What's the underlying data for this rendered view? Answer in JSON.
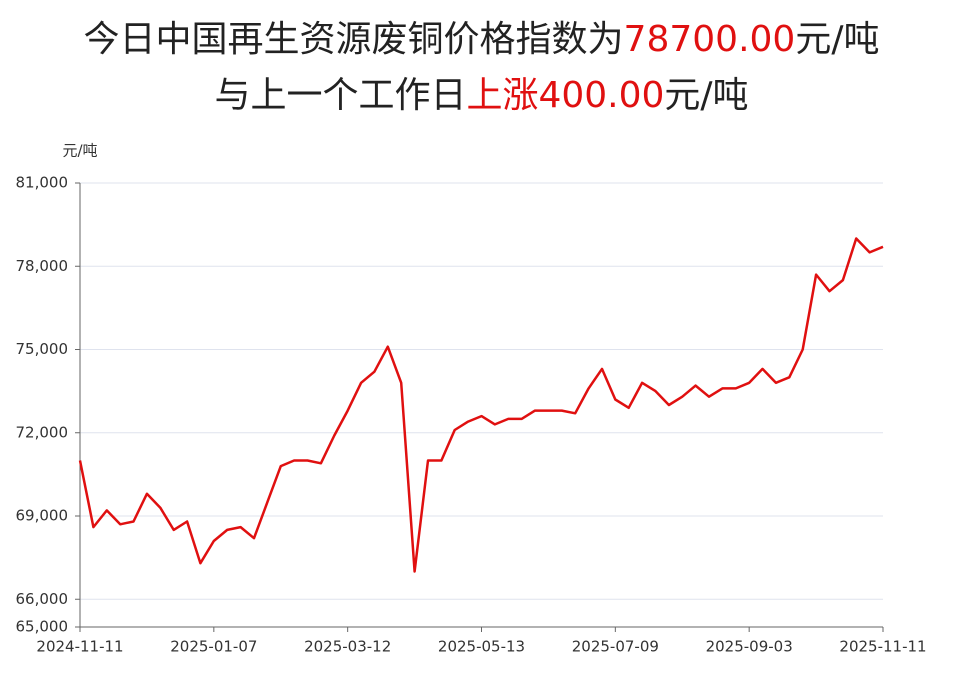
{
  "chart_data": {
    "type": "line",
    "title_line1": "今日中国再生资源废铜价格指数为",
    "title_price": "78700.00",
    "title_unit1": "元/吨",
    "title_line2": "与上一个工作日",
    "title_change": "上涨400.00",
    "title_unit2": "元/吨",
    "y_label": "元/吨",
    "categories": [
      "2024-11-11",
      null,
      null,
      null,
      null,
      null,
      null,
      null,
      null,
      null,
      "2025-01-07",
      null,
      null,
      null,
      null,
      null,
      null,
      null,
      null,
      null,
      "2025-03-12",
      null,
      null,
      null,
      null,
      null,
      null,
      null,
      null,
      null,
      "2025-05-13",
      null,
      null,
      null,
      null,
      null,
      null,
      null,
      null,
      null,
      "2025-07-09",
      null,
      null,
      null,
      null,
      null,
      null,
      null,
      null,
      null,
      "2025-09-03",
      null,
      null,
      null,
      null,
      null,
      null,
      null,
      null,
      null,
      "2025-11-11"
    ],
    "series": [
      {
        "color": "#e01010",
        "values": [
          71000,
          68600,
          69200,
          68700,
          68800,
          69800,
          69300,
          68500,
          68800,
          67300,
          68100,
          68500,
          68600,
          68200,
          69500,
          70800,
          71000,
          71000,
          70900,
          71900,
          72800,
          73800,
          74200,
          75100,
          73800,
          67000,
          71000,
          71000,
          72100,
          72400,
          72600,
          72300,
          72500,
          72500,
          72800,
          72800,
          72800,
          72700,
          73600,
          74300,
          73200,
          72900,
          73800,
          73500,
          73000,
          73300,
          73700,
          73300,
          73600,
          73600,
          73800,
          74300,
          73800,
          74000,
          75000,
          77700,
          77100,
          77500,
          79000,
          78500,
          78700
        ]
      }
    ],
    "ylim": [
      65000,
      81000
    ],
    "yticks": [
      {
        "value": 65000,
        "label": "65,000"
      },
      {
        "value": 66000,
        "label": "66,000"
      },
      {
        "value": 69000,
        "label": "69,000"
      },
      {
        "value": 72000,
        "label": "72,000"
      },
      {
        "value": 75000,
        "label": "75,000"
      },
      {
        "value": 78000,
        "label": "78,000"
      },
      {
        "value": 81000,
        "label": "81,000"
      }
    ],
    "grid": true
  }
}
